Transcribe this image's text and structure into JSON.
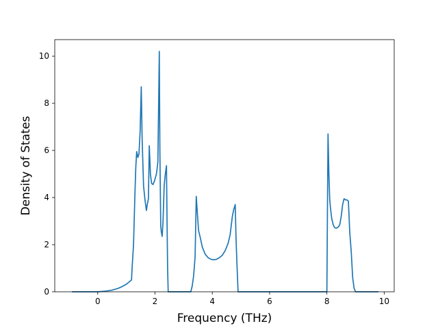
{
  "chart_data": {
    "type": "line",
    "title": "",
    "xlabel": "Frequency (THz)",
    "ylabel": "Density of States",
    "xlim": [
      -1.5,
      10.35
    ],
    "ylim": [
      0,
      10.7
    ],
    "x_ticks": [
      0,
      2,
      4,
      6,
      8,
      10
    ],
    "y_ticks": [
      0,
      2,
      4,
      6,
      8,
      10
    ],
    "grid": false,
    "colors": {
      "line": "#1f77b4",
      "axes": "#000000",
      "background": "#ffffff"
    },
    "series": [
      {
        "x": [
          -0.9,
          -0.5,
          0.0,
          0.3,
          0.5,
          0.7,
          0.85,
          1.0,
          1.1,
          1.18,
          1.2,
          1.25,
          1.3,
          1.33,
          1.36,
          1.4,
          1.44,
          1.48,
          1.52,
          1.55,
          1.6,
          1.65,
          1.7,
          1.73,
          1.77,
          1.8,
          1.84,
          1.88,
          1.93,
          1.98,
          2.05,
          2.1,
          2.15,
          2.17,
          2.2,
          2.22,
          2.25,
          2.28,
          2.32,
          2.36,
          2.4,
          2.42,
          2.44,
          2.46,
          2.48,
          2.5,
          3.0,
          3.25,
          3.3,
          3.35,
          3.4,
          3.44,
          3.48,
          3.52,
          3.58,
          3.65,
          3.75,
          3.85,
          3.95,
          4.05,
          4.15,
          4.25,
          4.35,
          4.45,
          4.55,
          4.62,
          4.7,
          4.75,
          4.8,
          4.83,
          4.86,
          4.9,
          5.5,
          6.5,
          7.5,
          8.0,
          8.02,
          8.04,
          8.07,
          8.1,
          8.13,
          8.17,
          8.22,
          8.27,
          8.33,
          8.4,
          8.45,
          8.5,
          8.55,
          8.6,
          8.65,
          8.7,
          8.75,
          8.8,
          8.85,
          8.9,
          8.95,
          9.0,
          9.5,
          9.8
        ],
        "y": [
          0.0,
          0.0,
          0.0,
          0.03,
          0.07,
          0.14,
          0.22,
          0.32,
          0.42,
          0.5,
          1.0,
          2.0,
          4.2,
          5.3,
          5.95,
          5.7,
          5.85,
          6.8,
          8.7,
          6.5,
          4.5,
          3.9,
          3.45,
          3.7,
          3.95,
          6.2,
          5.0,
          4.6,
          4.55,
          4.7,
          5.0,
          5.5,
          10.2,
          6.0,
          2.8,
          2.55,
          2.35,
          3.0,
          4.5,
          5.0,
          5.35,
          3.0,
          1.0,
          0.0,
          0.0,
          0.0,
          0.0,
          0.0,
          0.25,
          0.7,
          1.5,
          4.05,
          3.3,
          2.6,
          2.3,
          1.9,
          1.6,
          1.45,
          1.38,
          1.36,
          1.38,
          1.45,
          1.55,
          1.75,
          2.05,
          2.4,
          3.2,
          3.5,
          3.7,
          2.2,
          1.2,
          0.0,
          0.0,
          0.0,
          0.0,
          0.0,
          3.5,
          6.7,
          5.0,
          3.9,
          3.5,
          3.1,
          2.85,
          2.72,
          2.7,
          2.75,
          2.85,
          3.2,
          3.7,
          3.95,
          3.9,
          3.9,
          3.85,
          2.5,
          1.7,
          0.6,
          0.15,
          0.0,
          0.0,
          0.0
        ]
      }
    ]
  }
}
